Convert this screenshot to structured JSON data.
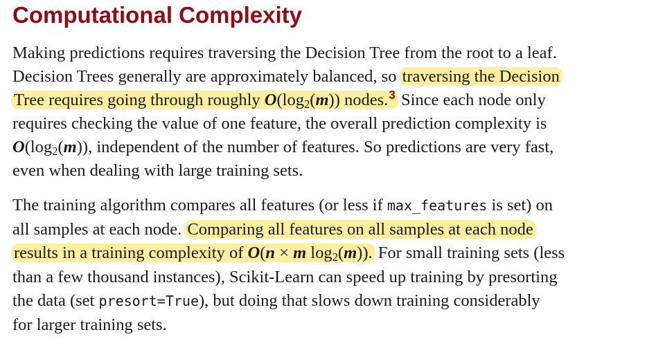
{
  "section": {
    "title": "Computational Complexity"
  },
  "paragraph1": {
    "l1": "Making predictions requires traversing the Decision Tree from the root to a leaf.",
    "l2_a": "Decision Trees generally are approximately balanced, so ",
    "l2_hl": "traversing the Decision",
    "l3_hl_a": "Tree requires going through roughly ",
    "o": "O",
    "open": "(log",
    "two": "2",
    "paren_open": "(",
    "m": "m",
    "close": "))",
    "l3_hl_b": " nodes.",
    "footnote": "3",
    "l3_b": " Since each node only",
    "l4": "requires checking the value of one feature, the overall prediction complexity is",
    "l5_b": ", independent of the number of features. So predictions are very fast,",
    "l6": "even when dealing with large training sets."
  },
  "paragraph2": {
    "l1_a": "The training algorithm compares all features (or less if ",
    "code1": "max_features",
    "l1_b": " is set) on",
    "l2_a": "all samples at each node. ",
    "l2_hl": "Comparing all features on all samples at each node",
    "l3_hl_a": "results in a training complexity of ",
    "n": "n",
    "times": " × ",
    "log": " log",
    "dot": ".",
    "l3_b": " For small training sets (less",
    "l4": "than a few thousand instances), Scikit-Learn can speed up training by presorting",
    "l5_a": "the data (set ",
    "code2": "presort=True",
    "l5_b": "), but doing that slows down training considerably",
    "l6": "for larger training sets."
  }
}
